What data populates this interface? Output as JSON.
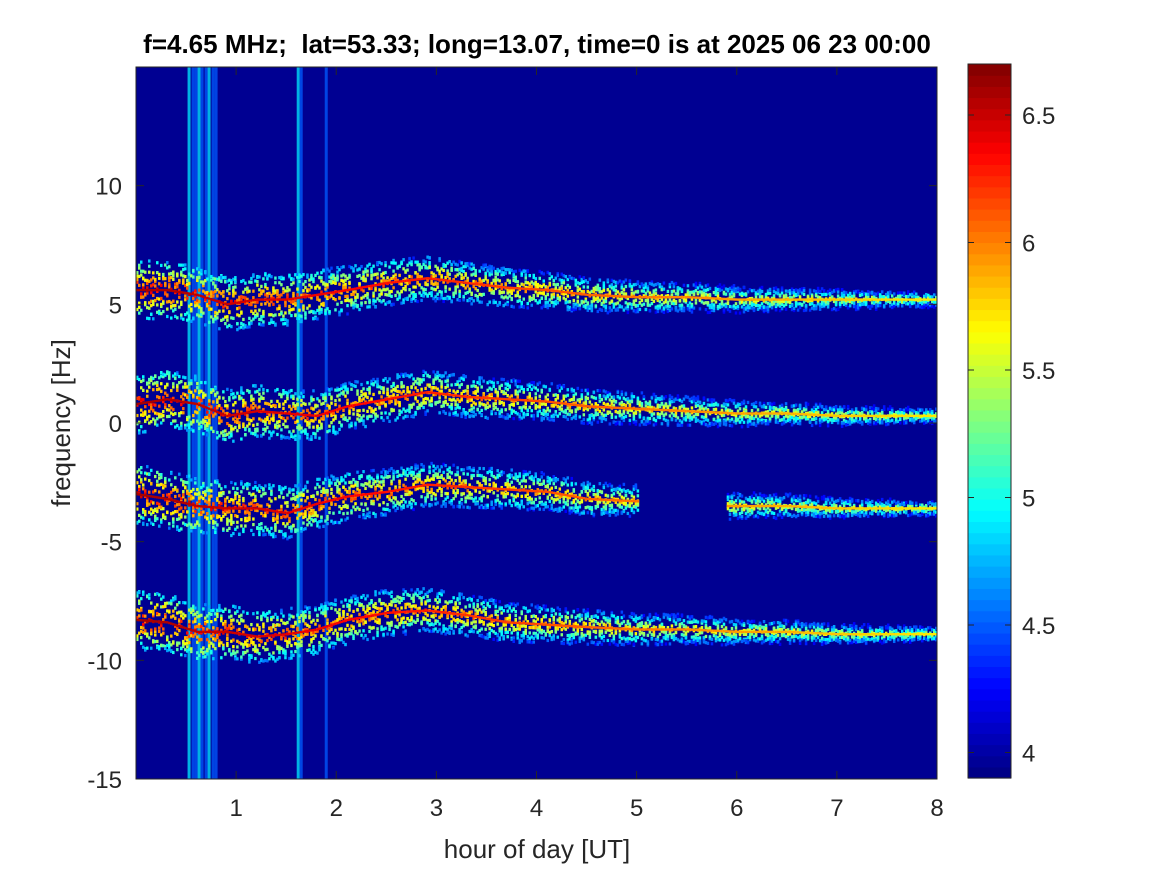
{
  "chart_data": {
    "type": "heatmap",
    "title": "f=4.65 MHz;  lat=53.33; long=13.07, time=0 is at 2025 06 23 00:00",
    "xlabel": "hour of day [UT]",
    "ylabel": "frequency [Hz]",
    "xlim": [
      0,
      8
    ],
    "ylim": [
      -15,
      15
    ],
    "x_ticks": [
      1,
      2,
      3,
      4,
      5,
      6,
      7,
      8
    ],
    "x_tick_labels": [
      "1",
      "2",
      "3",
      "4",
      "5",
      "6",
      "7",
      "8"
    ],
    "y_ticks": [
      -15,
      -10,
      -5,
      0,
      5,
      10
    ],
    "y_tick_labels": [
      "-15",
      "-10",
      "-5",
      "0",
      "5",
      "10"
    ],
    "colorbar": {
      "range": [
        3.9,
        6.7
      ],
      "ticks": [
        4,
        4.5,
        5,
        5.5,
        6,
        6.5
      ],
      "tick_labels": [
        "4",
        "4.5",
        "5",
        "5.5",
        "6",
        "6.5"
      ],
      "colormap": "jet"
    },
    "background_value": 3.95,
    "bands": [
      {
        "x": [
          0.0,
          0.3,
          0.6,
          0.9,
          1.2,
          1.5,
          1.8,
          2.1,
          2.5,
          2.9,
          3.3,
          3.7,
          4.1,
          4.5,
          5.0,
          5.5,
          6.0,
          6.5,
          7.0,
          7.5,
          8.0
        ],
        "y": [
          5.6,
          5.6,
          5.4,
          5.0,
          5.2,
          5.2,
          5.4,
          5.6,
          5.9,
          6.1,
          5.9,
          5.7,
          5.6,
          5.4,
          5.3,
          5.3,
          5.2,
          5.2,
          5.2,
          5.2,
          5.2
        ]
      },
      {
        "x": [
          0.0,
          0.3,
          0.6,
          0.9,
          1.2,
          1.5,
          1.8,
          2.1,
          2.5,
          2.9,
          3.3,
          3.7,
          4.1,
          4.5,
          5.0,
          5.5,
          6.0,
          6.5,
          7.0,
          7.5,
          8.0
        ],
        "y": [
          0.8,
          1.0,
          0.8,
          0.3,
          0.5,
          0.4,
          0.3,
          0.7,
          1.0,
          1.3,
          1.1,
          1.0,
          0.9,
          0.7,
          0.6,
          0.5,
          0.4,
          0.4,
          0.3,
          0.3,
          0.3
        ]
      },
      {
        "x": [
          0.0,
          0.3,
          0.6,
          0.9,
          1.2,
          1.5,
          1.8,
          2.1,
          2.5,
          2.9,
          3.3,
          3.7,
          4.1,
          4.5,
          5.0
        ],
        "y": [
          -3.0,
          -3.2,
          -3.5,
          -3.6,
          -3.6,
          -3.8,
          -3.4,
          -3.1,
          -2.9,
          -2.6,
          -2.7,
          -2.8,
          -2.9,
          -3.2,
          -3.3
        ]
      },
      {
        "x": [
          5.9,
          6.5,
          7.0,
          7.5,
          8.0
        ],
        "y": [
          -3.5,
          -3.5,
          -3.6,
          -3.6,
          -3.6
        ]
      },
      {
        "x": [
          0.0,
          0.3,
          0.6,
          0.9,
          1.2,
          1.5,
          1.8,
          2.1,
          2.5,
          2.9,
          3.3,
          3.7,
          4.1,
          4.5,
          5.0,
          5.5,
          6.0,
          6.5,
          7.0,
          7.5,
          8.0
        ],
        "y": [
          -8.3,
          -8.4,
          -8.8,
          -8.8,
          -9.0,
          -8.9,
          -8.7,
          -8.3,
          -8.0,
          -7.9,
          -8.1,
          -8.4,
          -8.5,
          -8.6,
          -8.7,
          -8.7,
          -8.8,
          -8.8,
          -8.9,
          -8.9,
          -8.9
        ]
      }
    ],
    "vertical_streaks_x": [
      0.53,
      0.57,
      0.6,
      0.63,
      0.66,
      0.7,
      0.73,
      0.77,
      0.8,
      1.62,
      1.65,
      1.9
    ]
  }
}
